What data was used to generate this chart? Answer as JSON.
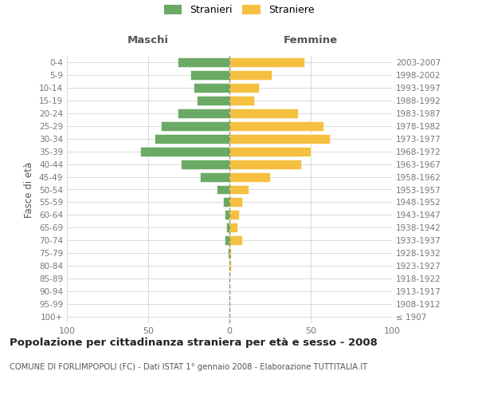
{
  "age_groups": [
    "100+",
    "95-99",
    "90-94",
    "85-89",
    "80-84",
    "75-79",
    "70-74",
    "65-69",
    "60-64",
    "55-59",
    "50-54",
    "45-49",
    "40-44",
    "35-39",
    "30-34",
    "25-29",
    "20-24",
    "15-19",
    "10-14",
    "5-9",
    "0-4"
  ],
  "birth_years": [
    "≤ 1907",
    "1908-1912",
    "1913-1917",
    "1918-1922",
    "1923-1927",
    "1928-1932",
    "1933-1937",
    "1938-1942",
    "1943-1947",
    "1948-1952",
    "1953-1957",
    "1958-1962",
    "1963-1967",
    "1968-1972",
    "1973-1977",
    "1978-1982",
    "1983-1987",
    "1988-1992",
    "1993-1997",
    "1998-2002",
    "2003-2007"
  ],
  "maschi": [
    0,
    0,
    0,
    0,
    0,
    1,
    3,
    2,
    3,
    4,
    8,
    18,
    30,
    55,
    46,
    42,
    32,
    20,
    22,
    24,
    32
  ],
  "femmine": [
    0,
    0,
    0,
    0,
    1,
    1,
    8,
    5,
    6,
    8,
    12,
    25,
    44,
    50,
    62,
    58,
    42,
    15,
    18,
    26,
    46
  ],
  "maschi_color": "#6aaa64",
  "femmine_color": "#f5c040",
  "bar_edgecolor": "white",
  "background_color": "#ffffff",
  "grid_color": "#cccccc",
  "vline_color": "#888855",
  "title": "Popolazione per cittadinanza straniera per età e sesso - 2008",
  "subtitle": "COMUNE DI FORLIMPOPOLI (FC) - Dati ISTAT 1° gennaio 2008 - Elaborazione TUTTITALIA.IT",
  "ylabel_left": "Fasce di età",
  "xlabel_maschi": "Maschi",
  "xlabel_femmine": "Femmine",
  "legend_stranieri": "Stranieri",
  "legend_straniere": "Straniere",
  "xlim": 100,
  "xticks": [
    -100,
    -50,
    0,
    50,
    100
  ],
  "xticklabels": [
    "100",
    "50",
    "0",
    "50",
    "100"
  ]
}
